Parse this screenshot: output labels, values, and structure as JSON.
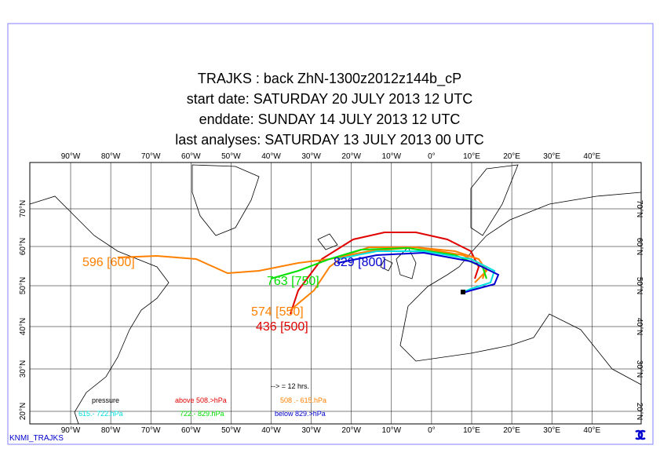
{
  "title": {
    "lines": [
      "TRAJKS : back ZhN-1300z2012z144b_cP",
      "start date:  SATURDAY  20 JULY      2013 12 UTC",
      "enddate:  SUNDAY    14 JULY      2013 12 UTC",
      "last analyses:  SATURDAY  13 JULY      2013 00 UTC"
    ]
  },
  "map": {
    "longitude_labels": [
      "90°W",
      "80°W",
      "70°W",
      "60°W",
      "50°W",
      "40°W",
      "30°W",
      "20°W",
      "10°W",
      "0°",
      "10°E",
      "20°E",
      "30°E",
      "40°E"
    ],
    "latitude_labels": [
      "20°N",
      "30°N",
      "40°N",
      "50°N",
      "60°N",
      "70°N"
    ],
    "trajectory_labels": [
      "596 [600]",
      "574 [550]",
      "436 [500]",
      "763 [750]",
      "829 [800]"
    ]
  },
  "legend": {
    "arrow_note": "--> = 12 hrs.",
    "items": [
      "pressure",
      "above  508.>hPa",
      "508 .-  615.hPa",
      "615.-   722.hPa",
      "722.-   829.hPa",
      "below  829.>hPa"
    ]
  },
  "footer": "KNMI_TRAJKS"
}
